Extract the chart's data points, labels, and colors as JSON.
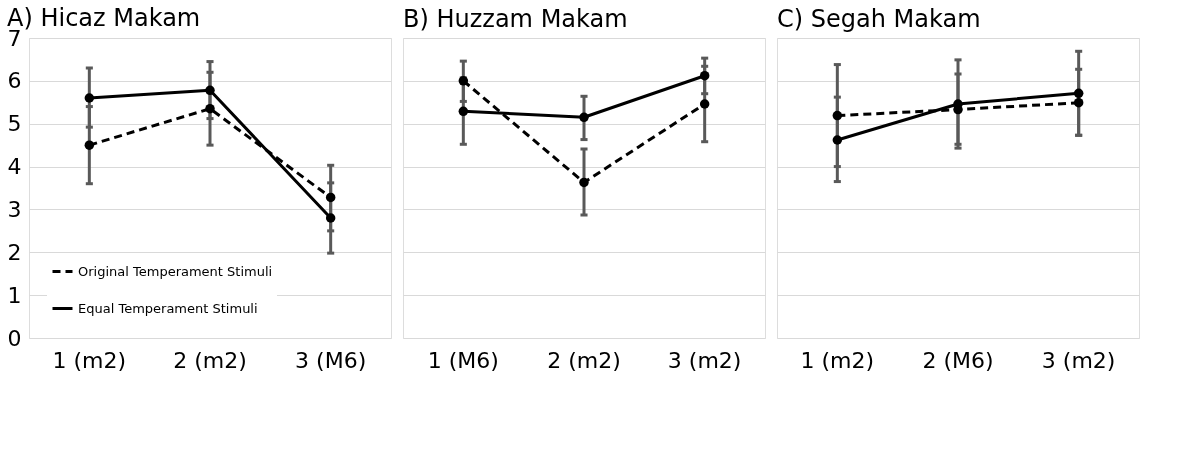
{
  "chart_data": [
    {
      "type": "line",
      "title": "A)  Hicaz Makam",
      "categories": [
        "1 (m2)",
        "2 (m2)",
        "3 (M6)"
      ],
      "ylim": [
        0,
        7
      ],
      "yticks": [
        0,
        1,
        2,
        3,
        4,
        5,
        6,
        7
      ],
      "grid": "y",
      "legend": "bottom left",
      "marker": "circle",
      "series": [
        {
          "name": "Original Temperament Stimuli",
          "color": "#000000",
          "line_style": "dashed",
          "values": [
            4.5,
            5.35,
            3.28
          ],
          "errors": [
            [
              3.6,
              5.4
            ],
            [
              4.5,
              6.2
            ],
            [
              2.5,
              4.03
            ]
          ]
        },
        {
          "name": "Equal Temperament Stimuli",
          "color": "#000000",
          "line_style": "solid",
          "values": [
            5.6,
            5.78,
            2.8
          ],
          "errors": [
            [
              4.92,
              6.3
            ],
            [
              5.12,
              6.45
            ],
            [
              1.98,
              3.62
            ]
          ]
        }
      ]
    },
    {
      "type": "line",
      "title": "B)   Huzzam Makam",
      "categories": [
        "1 (M6)",
        "2 (m2)",
        "3 (m2)"
      ],
      "ylim": [
        0,
        7
      ],
      "yticks": [
        0,
        1,
        2,
        3,
        4,
        5,
        6,
        7
      ],
      "grid": "y",
      "tick_labels": "x",
      "marker": "circle",
      "series": [
        {
          "color": "#000000",
          "line_style": "dashed",
          "values": [
            6.0,
            3.63,
            5.46
          ],
          "errors": [
            [
              5.52,
              6.46
            ],
            [
              2.87,
              4.41
            ],
            [
              4.58,
              6.34
            ]
          ]
        },
        {
          "color": "#000000",
          "line_style": "solid",
          "values": [
            5.29,
            5.15,
            6.12
          ],
          "errors": [
            [
              4.52,
              6.07
            ],
            [
              4.63,
              5.64
            ],
            [
              5.7,
              6.53
            ]
          ]
        }
      ]
    },
    {
      "type": "line",
      "title": "C)  Segah Makam",
      "categories": [
        "1 (m2)",
        "2 (M6)",
        "3 (m2)"
      ],
      "ylim": [
        0,
        7
      ],
      "yticks": [
        0,
        1,
        2,
        3,
        4,
        5,
        6,
        7
      ],
      "grid": "y",
      "tick_labels": "x",
      "marker": "circle",
      "series": [
        {
          "color": "#000000",
          "line_style": "dashed",
          "values": [
            5.19,
            5.33,
            5.49
          ],
          "errors": [
            [
              4.0,
              6.38
            ],
            [
              4.52,
              6.16
            ],
            [
              4.73,
              6.27
            ]
          ]
        },
        {
          "color": "#000000",
          "line_style": "solid",
          "values": [
            4.62,
            5.46,
            5.71
          ],
          "errors": [
            [
              3.65,
              5.62
            ],
            [
              4.43,
              6.49
            ],
            [
              4.73,
              6.69
            ]
          ]
        }
      ]
    }
  ]
}
